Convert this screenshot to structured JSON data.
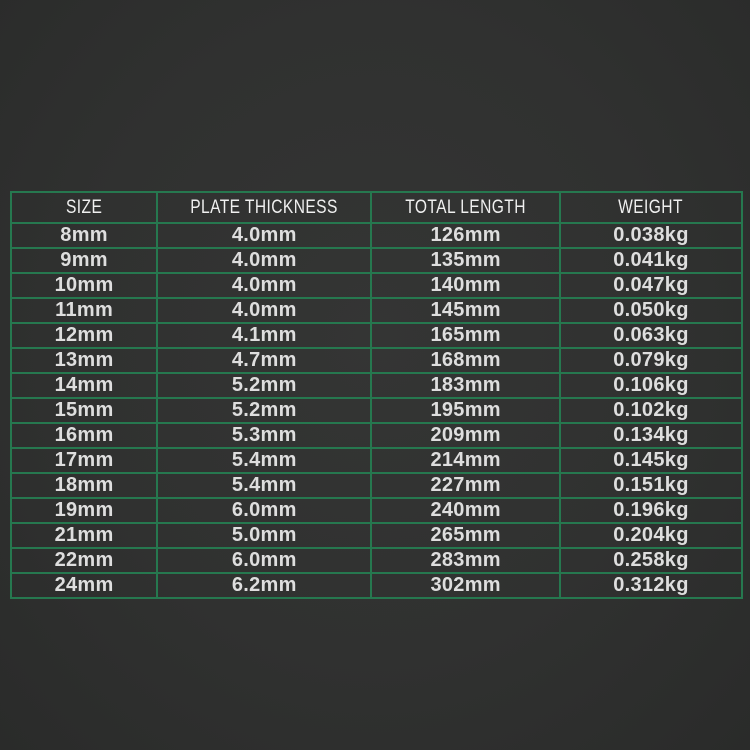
{
  "page": {
    "background_color": "#303130"
  },
  "table": {
    "border_color": "#26784f",
    "header_text_color": "#f0f0f0",
    "cell_text_color": "#dedede",
    "headers": [
      "SIZE",
      "PLATE THICKNESS",
      "TOTAL LENGTH",
      "WEIGHT"
    ],
    "rows": [
      [
        "8mm",
        "4.0mm",
        "126mm",
        "0.038kg"
      ],
      [
        "9mm",
        "4.0mm",
        "135mm",
        "0.041kg"
      ],
      [
        "10mm",
        "4.0mm",
        "140mm",
        "0.047kg"
      ],
      [
        "11mm",
        "4.0mm",
        "145mm",
        "0.050kg"
      ],
      [
        "12mm",
        "4.1mm",
        "165mm",
        "0.063kg"
      ],
      [
        "13mm",
        "4.7mm",
        "168mm",
        "0.079kg"
      ],
      [
        "14mm",
        "5.2mm",
        "183mm",
        "0.106kg"
      ],
      [
        "15mm",
        "5.2mm",
        "195mm",
        "0.102kg"
      ],
      [
        "16mm",
        "5.3mm",
        "209mm",
        "0.134kg"
      ],
      [
        "17mm",
        "5.4mm",
        "214mm",
        "0.145kg"
      ],
      [
        "18mm",
        "5.4mm",
        "227mm",
        "0.151kg"
      ],
      [
        "19mm",
        "6.0mm",
        "240mm",
        "0.196kg"
      ],
      [
        "21mm",
        "5.0mm",
        "265mm",
        "0.204kg"
      ],
      [
        "22mm",
        "6.0mm",
        "283mm",
        "0.258kg"
      ],
      [
        "24mm",
        "6.2mm",
        "302mm",
        "0.312kg"
      ]
    ]
  },
  "chart_data": {
    "type": "table",
    "title": "",
    "columns": [
      "SIZE",
      "PLATE THICKNESS",
      "TOTAL LENGTH",
      "WEIGHT"
    ],
    "rows": [
      [
        "8mm",
        "4.0mm",
        "126mm",
        "0.038kg"
      ],
      [
        "9mm",
        "4.0mm",
        "135mm",
        "0.041kg"
      ],
      [
        "10mm",
        "4.0mm",
        "140mm",
        "0.047kg"
      ],
      [
        "11mm",
        "4.0mm",
        "145mm",
        "0.050kg"
      ],
      [
        "12mm",
        "4.1mm",
        "165mm",
        "0.063kg"
      ],
      [
        "13mm",
        "4.7mm",
        "168mm",
        "0.079kg"
      ],
      [
        "14mm",
        "5.2mm",
        "183mm",
        "0.106kg"
      ],
      [
        "15mm",
        "5.2mm",
        "195mm",
        "0.102kg"
      ],
      [
        "16mm",
        "5.3mm",
        "209mm",
        "0.134kg"
      ],
      [
        "17mm",
        "5.4mm",
        "214mm",
        "0.145kg"
      ],
      [
        "18mm",
        "5.4mm",
        "227mm",
        "0.151kg"
      ],
      [
        "19mm",
        "6.0mm",
        "240mm",
        "0.196kg"
      ],
      [
        "21mm",
        "5.0mm",
        "265mm",
        "0.204kg"
      ],
      [
        "22mm",
        "6.0mm",
        "283mm",
        "0.258kg"
      ],
      [
        "24mm",
        "6.2mm",
        "302mm",
        "0.312kg"
      ]
    ],
    "layout_hints": {
      "grid": true,
      "grid_color": "#26784f",
      "background": "dark-charcoal",
      "text_alignment": "center"
    }
  }
}
